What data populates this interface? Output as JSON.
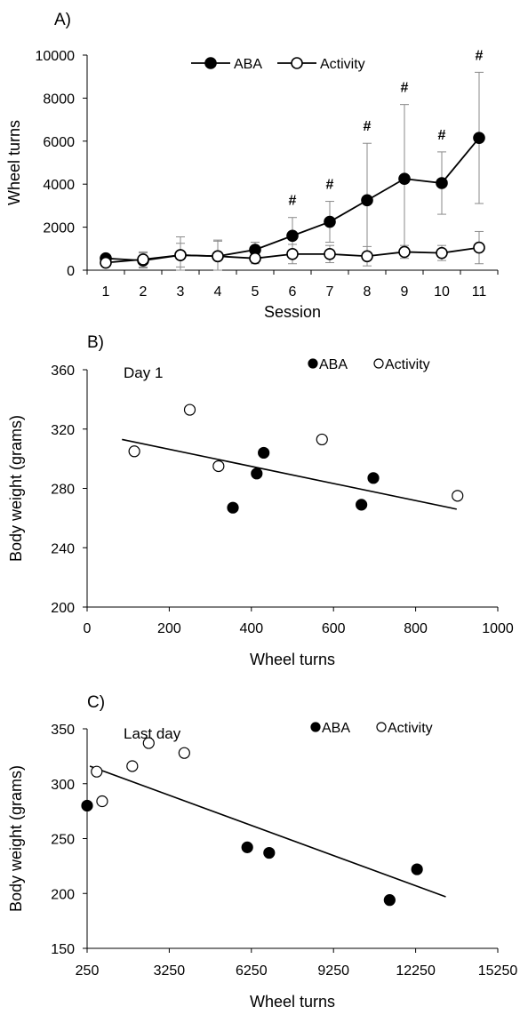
{
  "chart_data": [
    {
      "type": "line",
      "panel_label": "A)",
      "xlabel": "Session",
      "ylabel": "Wheel turns",
      "ylim": [
        0,
        10000
      ],
      "ytick_labels": [
        "0",
        "2000",
        "4000",
        "6000",
        "8000",
        "10000"
      ],
      "x": [
        1,
        2,
        3,
        4,
        5,
        6,
        7,
        8,
        9,
        10,
        11
      ],
      "xtick_labels": [
        "1",
        "2",
        "3",
        "4",
        "5",
        "6",
        "7",
        "8",
        "9",
        "10",
        "11"
      ],
      "legend": "top-center",
      "series": [
        {
          "name": "ABA",
          "marker": "filled-circle",
          "values": [
            550,
            450,
            700,
            650,
            950,
            1600,
            2250,
            3250,
            4250,
            4050,
            6150
          ],
          "errors": [
            150,
            350,
            550,
            700,
            350,
            850,
            950,
            2650,
            3450,
            1450,
            3050
          ]
        },
        {
          "name": "Activity",
          "marker": "open-circle",
          "values": [
            350,
            500,
            700,
            650,
            550,
            750,
            750,
            650,
            850,
            800,
            1050
          ],
          "errors": [
            150,
            350,
            850,
            750,
            250,
            450,
            400,
            450,
            300,
            350,
            750
          ]
        }
      ],
      "annotations": [
        {
          "x": 6,
          "text": "#"
        },
        {
          "x": 7,
          "text": "#"
        },
        {
          "x": 8,
          "text": "#"
        },
        {
          "x": 9,
          "text": "#"
        },
        {
          "x": 10,
          "text": "#"
        },
        {
          "x": 11,
          "text": "#"
        }
      ]
    },
    {
      "type": "scatter",
      "panel_label": "B)",
      "subtitle": "Day 1",
      "xlabel": "Wheel turns",
      "ylabel": "Body weight (grams)",
      "xlim": [
        0,
        1000
      ],
      "ylim": [
        200,
        360
      ],
      "xtick_labels": [
        "0",
        "200",
        "400",
        "600",
        "800",
        "1000"
      ],
      "ytick_labels": [
        "200",
        "240",
        "280",
        "320",
        "360"
      ],
      "legend": "top-right",
      "series": [
        {
          "name": "ABA",
          "marker": "filled-circle",
          "x": [
            355,
            413,
            430,
            668,
            697
          ],
          "y": [
            267,
            290,
            304,
            269,
            287
          ]
        },
        {
          "name": "Activity",
          "marker": "open-circle",
          "x": [
            115,
            250,
            320,
            572,
            902
          ],
          "y": [
            305,
            333,
            295,
            313,
            275
          ]
        }
      ],
      "trendline": {
        "x": [
          85,
          900
        ],
        "y": [
          313,
          266
        ]
      }
    },
    {
      "type": "scatter",
      "panel_label": "C)",
      "subtitle": "Last day",
      "xlabel": "Wheel turns",
      "ylabel": "Body weight (grams)",
      "xlim": [
        250,
        15250
      ],
      "ylim": [
        150,
        350
      ],
      "xtick_labels": [
        "250",
        "3250",
        "6250",
        "9250",
        "12250",
        "15250"
      ],
      "ytick_labels": [
        "150",
        "200",
        "250",
        "300",
        "350"
      ],
      "legend": "top-right",
      "series": [
        {
          "name": "ABA",
          "marker": "filled-circle",
          "x": [
            250,
            6100,
            6900,
            11300,
            12300
          ],
          "y": [
            280,
            242,
            237,
            194,
            222
          ]
        },
        {
          "name": "Activity",
          "marker": "open-circle",
          "x": [
            600,
            800,
            1900,
            2500,
            3800
          ],
          "y": [
            311,
            284,
            316,
            337,
            328
          ]
        }
      ],
      "trendline": {
        "x": [
          350,
          13350
        ],
        "y": [
          316,
          197
        ]
      }
    }
  ]
}
